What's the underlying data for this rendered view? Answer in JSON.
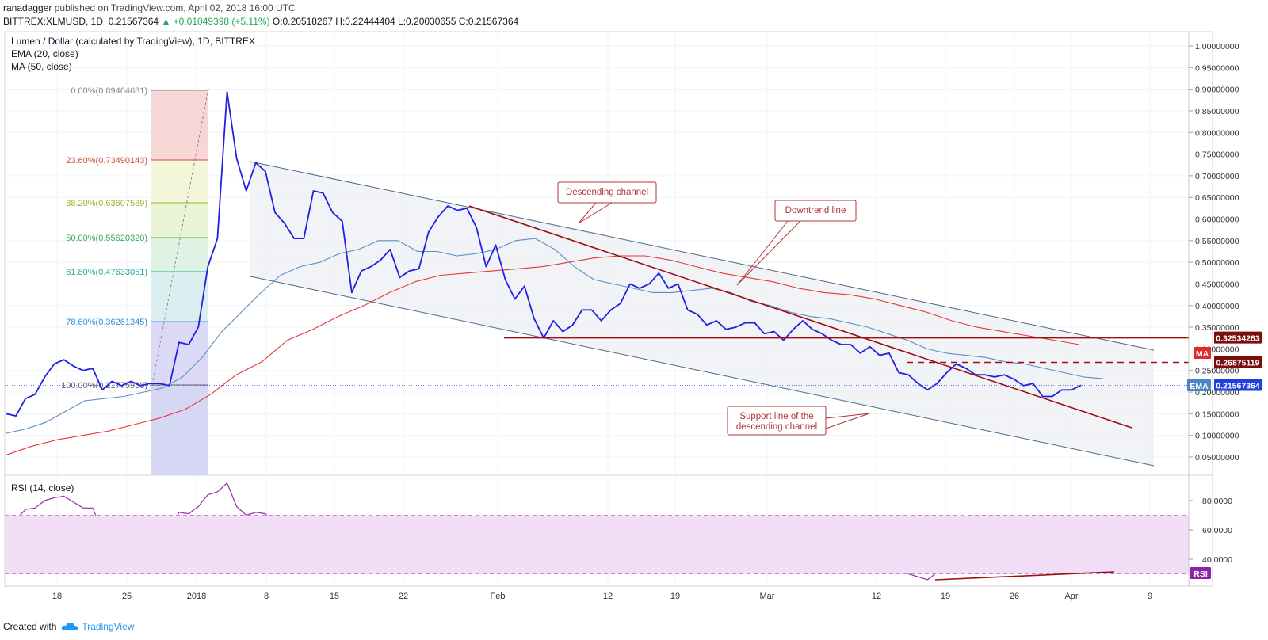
{
  "header": {
    "publisher": "ranadagger",
    "published_text": "published on TradingView.com, April 02, 2018 16:00 UTC",
    "symbol": "BITTREX:XLMUSD, 1D",
    "last": "0.21567364",
    "change": "▲ +0.01049398 (+5.11%)",
    "ohlc": "O:0.20518267 H:0.22444404 L:0.20030655 C:0.21567364"
  },
  "legend": {
    "title": "Lumen / Dollar (calculated by TradingView), 1D, BITTREX",
    "ema": "EMA (20, close)",
    "ma": "MA (50, close)",
    "rsi": "RSI (14, close)"
  },
  "footer": {
    "created_with": "Created with",
    "brand": "TradingView"
  },
  "colors": {
    "price": "#1e22e0",
    "ema": "#5b8fc2",
    "ma": "#e5383b",
    "rsi": "#9c27b0",
    "trend": "#9b1010",
    "channel": "#4a6b82",
    "hline": "#9b1010",
    "rsi_band": "#f1ddf6"
  },
  "chart_data": {
    "type": "line",
    "x_axis_labels": [
      "18",
      "25",
      "2018",
      "8",
      "15",
      "22",
      "Feb",
      "12",
      "19",
      "Mar",
      "12",
      "19",
      "26",
      "Apr",
      "9"
    ],
    "y_axis_labels": [
      "1.00000000",
      "0.95000000",
      "0.90000000",
      "0.85000000",
      "0.80000000",
      "0.75000000",
      "0.70000000",
      "0.65000000",
      "0.60000000",
      "0.55000000",
      "0.50000000",
      "0.45000000",
      "0.40000000",
      "0.35000000",
      "0.30000000",
      "0.25000000",
      "0.20000000",
      "0.15000000",
      "0.10000000",
      "0.05000000"
    ],
    "ylim": [
      0,
      1.05
    ],
    "series": [
      {
        "name": "price",
        "x": [
          "Dec 11",
          "Dec 12",
          "Dec 13",
          "Dec 14",
          "Dec 15",
          "Dec 16",
          "Dec 17",
          "Dec 18",
          "Dec 19",
          "Dec 20",
          "Dec 21",
          "Dec 22",
          "Dec 23",
          "Dec 24",
          "Dec 25",
          "Dec 26",
          "Dec 27",
          "Dec 28",
          "Dec 29",
          "Dec 30",
          "Dec 31",
          "Jan 1",
          "Jan 2",
          "Jan 3",
          "Jan 4",
          "Jan 5",
          "Jan 6",
          "Jan 7",
          "Jan 8",
          "Jan 9",
          "Jan 10",
          "Jan 11",
          "Jan 12",
          "Jan 13",
          "Jan 14",
          "Jan 15",
          "Jan 16",
          "Jan 17",
          "Jan 18",
          "Jan 19",
          "Jan 20",
          "Jan 21",
          "Jan 22",
          "Jan 23",
          "Jan 24",
          "Jan 25",
          "Jan 26",
          "Jan 27",
          "Jan 28",
          "Jan 29",
          "Jan 30",
          "Jan 31",
          "Feb 1",
          "Feb 2",
          "Feb 3",
          "Feb 4",
          "Feb 5",
          "Feb 6",
          "Feb 7",
          "Feb 8",
          "Feb 9",
          "Feb 10",
          "Feb 11",
          "Feb 12",
          "Feb 13",
          "Feb 14",
          "Feb 15",
          "Feb 16",
          "Feb 17",
          "Feb 18",
          "Feb 19",
          "Feb 20",
          "Feb 21",
          "Feb 22",
          "Feb 23",
          "Feb 24",
          "Feb 25",
          "Feb 26",
          "Feb 27",
          "Feb 28",
          "Mar 1",
          "Mar 2",
          "Mar 3",
          "Mar 4",
          "Mar 5",
          "Mar 6",
          "Mar 7",
          "Mar 8",
          "Mar 9",
          "Mar 10",
          "Mar 11",
          "Mar 12",
          "Mar 13",
          "Mar 14",
          "Mar 15",
          "Mar 16",
          "Mar 17",
          "Mar 18",
          "Mar 19",
          "Mar 20",
          "Mar 21",
          "Mar 22",
          "Mar 23",
          "Mar 24",
          "Mar 25",
          "Mar 26",
          "Mar 27",
          "Mar 28",
          "Mar 29",
          "Mar 30",
          "Mar 31",
          "Apr 1",
          "Apr 2"
        ],
        "values": [
          0.15,
          0.145,
          0.185,
          0.195,
          0.235,
          0.265,
          0.275,
          0.26,
          0.25,
          0.255,
          0.205,
          0.225,
          0.215,
          0.225,
          0.215,
          0.22,
          0.22,
          0.215,
          0.315,
          0.31,
          0.35,
          0.49,
          0.555,
          0.894,
          0.74,
          0.665,
          0.73,
          0.71,
          0.615,
          0.59,
          0.555,
          0.555,
          0.665,
          0.66,
          0.615,
          0.595,
          0.43,
          0.48,
          0.49,
          0.505,
          0.53,
          0.465,
          0.48,
          0.485,
          0.57,
          0.605,
          0.63,
          0.62,
          0.625,
          0.58,
          0.49,
          0.54,
          0.46,
          0.415,
          0.445,
          0.37,
          0.325,
          0.365,
          0.34,
          0.355,
          0.39,
          0.39,
          0.365,
          0.39,
          0.405,
          0.45,
          0.44,
          0.45,
          0.475,
          0.44,
          0.45,
          0.39,
          0.38,
          0.355,
          0.365,
          0.345,
          0.35,
          0.36,
          0.36,
          0.335,
          0.34,
          0.32,
          0.345,
          0.365,
          0.345,
          0.335,
          0.32,
          0.31,
          0.31,
          0.29,
          0.305,
          0.285,
          0.29,
          0.245,
          0.24,
          0.22,
          0.205,
          0.22,
          0.245,
          0.265,
          0.255,
          0.24,
          0.24,
          0.235,
          0.24,
          0.23,
          0.215,
          0.22,
          0.19,
          0.19,
          0.205,
          0.205,
          0.216
        ]
      },
      {
        "name": "EMA (20, close)",
        "values": [
          0.105,
          0.115,
          0.13,
          0.155,
          0.18,
          0.185,
          0.19,
          0.2,
          0.21,
          0.235,
          0.28,
          0.34,
          0.385,
          0.43,
          0.47,
          0.49,
          0.5,
          0.52,
          0.53,
          0.55,
          0.55,
          0.525,
          0.525,
          0.515,
          0.52,
          0.53,
          0.55,
          0.555,
          0.53,
          0.49,
          0.46,
          0.45,
          0.44,
          0.43,
          0.43,
          0.435,
          0.44,
          0.43,
          0.41,
          0.4,
          0.385,
          0.375,
          0.37,
          0.36,
          0.35,
          0.335,
          0.32,
          0.3,
          0.29,
          0.285,
          0.28,
          0.27,
          0.265,
          0.255,
          0.245,
          0.235,
          0.231
        ]
      },
      {
        "name": "MA (50, close)",
        "values": [
          0.055,
          0.075,
          0.09,
          0.1,
          0.11,
          0.125,
          0.14,
          0.16,
          0.195,
          0.24,
          0.27,
          0.32,
          0.345,
          0.375,
          0.4,
          0.43,
          0.455,
          0.47,
          0.475,
          0.48,
          0.485,
          0.49,
          0.5,
          0.51,
          0.515,
          0.515,
          0.505,
          0.49,
          0.475,
          0.465,
          0.455,
          0.44,
          0.43,
          0.425,
          0.415,
          0.4,
          0.385,
          0.365,
          0.35,
          0.34,
          0.33,
          0.32,
          0.31
        ]
      }
    ],
    "fibonacci": [
      {
        "label": "0.00%(0.89464681)"
      },
      {
        "label": "23.60%(0.73490143)"
      },
      {
        "label": "38.20%(0.63607589)"
      },
      {
        "label": "50.00%(0.55620320)"
      },
      {
        "label": "61.80%(0.47633051)"
      },
      {
        "label": "78.60%(0.36261345)"
      },
      {
        "label": "100.00%(0.21775938)"
      }
    ],
    "horizontal_levels": [
      "0.32534283",
      "0.26875119"
    ],
    "price_tags": {
      "ma": "MA",
      "ema": "EMA",
      "current": "0.21567364",
      "level1": "0.32534283",
      "level2": "0.26875119"
    },
    "annotations": {
      "descending_channel": "Descending channel",
      "downtrend_line": "Downtrend line",
      "support_line": "Support line of the\ndescending channel"
    },
    "rsi": {
      "label": "RSI",
      "y_axis_labels": [
        "80.0000",
        "60.0000",
        "40.0000"
      ],
      "band": [
        30,
        70
      ],
      "values": [
        68,
        67,
        74,
        75,
        80,
        82,
        83,
        79,
        75,
        75,
        59,
        62,
        60,
        61,
        61,
        61,
        61,
        60,
        72,
        71,
        76,
        84,
        86,
        92,
        76,
        70,
        72,
        71,
        63,
        61,
        58,
        58,
        64,
        63,
        60,
        58,
        46,
        49,
        50,
        51,
        53,
        48,
        49,
        49,
        56,
        58,
        60,
        59,
        59,
        55,
        47,
        51,
        45,
        42,
        44,
        39,
        36,
        39,
        38,
        39,
        43,
        43,
        40,
        43,
        45,
        51,
        50,
        51,
        53,
        50,
        50,
        45,
        44,
        41,
        42,
        40,
        41,
        42,
        42,
        40,
        40,
        38,
        43,
        46,
        43,
        42,
        40,
        38,
        38,
        36,
        38,
        36,
        36,
        31,
        30,
        28,
        26,
        31,
        38,
        42,
        40,
        38,
        38,
        37,
        38,
        36,
        34,
        35,
        31,
        31,
        36,
        37,
        40
      ]
    }
  }
}
